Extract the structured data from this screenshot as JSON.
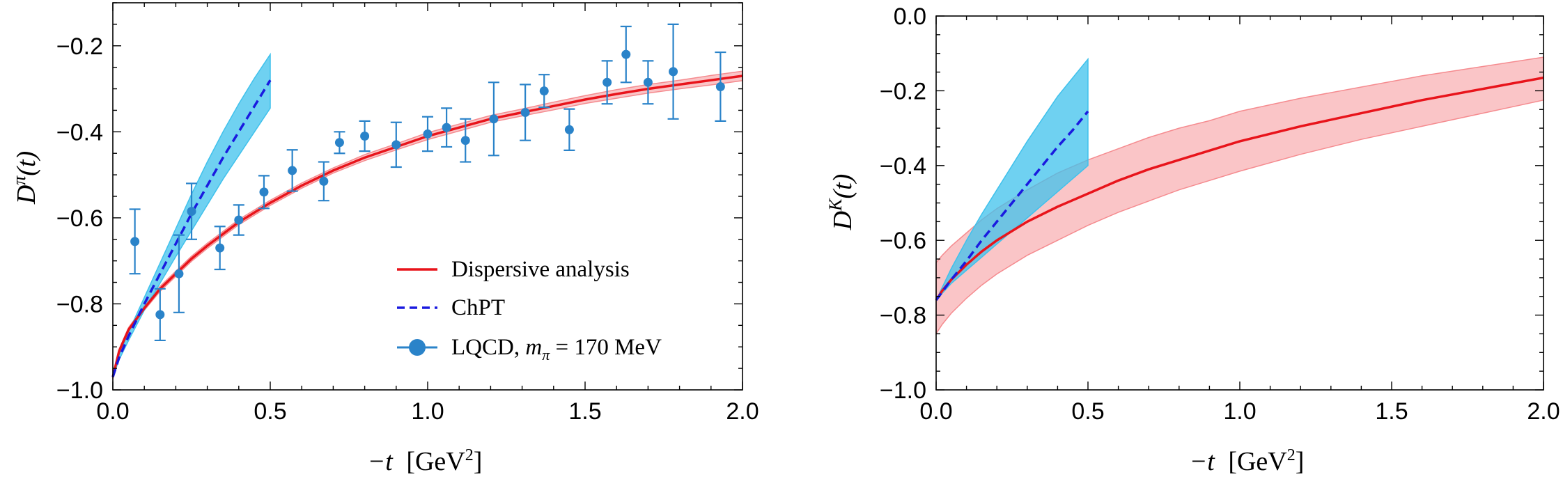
{
  "chart_data": [
    {
      "type": "line",
      "id": "pion",
      "xlabel_main": "−t",
      "xlabel_unit": "[GeV",
      "xlabel_unit_sup": "2",
      "xlabel_unit_close": "]",
      "ylabel_main": "D",
      "ylabel_sup": "π",
      "ylabel_arg": "(t)",
      "xlim": [
        0.0,
        2.0
      ],
      "ylim": [
        -1.0,
        -0.1
      ],
      "xticks": [
        "0.0",
        "0.5",
        "1.0",
        "1.5",
        "2.0"
      ],
      "yticks": [
        "−1.0",
        "−0.8",
        "−0.6",
        "−0.4",
        "−0.2"
      ],
      "grid": false,
      "legend_placement": "bottom-right",
      "legend": [
        {
          "label": "Dispersive analysis",
          "style": "solid",
          "color": "#e8141b"
        },
        {
          "label": "ChPT",
          "style": "dashed",
          "color": "#1a1adf"
        },
        {
          "label": "LQCD, ",
          "label_var": "m",
          "label_sub": "π",
          "label_rest": " = 170 MeV",
          "style": "points",
          "color": "#2a83c9"
        }
      ],
      "series": [
        {
          "name": "Dispersive analysis",
          "color": "#e8141b",
          "band_color": "#f58b8f",
          "x": [
            0.0,
            0.02,
            0.05,
            0.1,
            0.15,
            0.2,
            0.25,
            0.3,
            0.4,
            0.5,
            0.6,
            0.7,
            0.8,
            0.9,
            1.0,
            1.1,
            1.2,
            1.3,
            1.4,
            1.5,
            1.6,
            1.7,
            1.8,
            1.9,
            2.0
          ],
          "y": [
            -0.97,
            -0.91,
            -0.86,
            -0.81,
            -0.765,
            -0.73,
            -0.695,
            -0.665,
            -0.61,
            -0.565,
            -0.525,
            -0.49,
            -0.46,
            -0.435,
            -0.41,
            -0.39,
            -0.37,
            -0.355,
            -0.34,
            -0.325,
            -0.312,
            -0.3,
            -0.29,
            -0.28,
            -0.27
          ],
          "y_lo": [
            -0.975,
            -0.915,
            -0.865,
            -0.815,
            -0.771,
            -0.736,
            -0.701,
            -0.671,
            -0.616,
            -0.571,
            -0.531,
            -0.496,
            -0.467,
            -0.442,
            -0.418,
            -0.398,
            -0.378,
            -0.363,
            -0.349,
            -0.334,
            -0.322,
            -0.31,
            -0.3,
            -0.291,
            -0.281
          ],
          "y_hi": [
            -0.965,
            -0.905,
            -0.855,
            -0.805,
            -0.759,
            -0.724,
            -0.689,
            -0.659,
            -0.604,
            -0.559,
            -0.519,
            -0.484,
            -0.453,
            -0.428,
            -0.402,
            -0.382,
            -0.362,
            -0.347,
            -0.331,
            -0.316,
            -0.302,
            -0.29,
            -0.28,
            -0.269,
            -0.259
          ]
        },
        {
          "name": "ChPT",
          "color": "#1a1adf",
          "band_color": "#3fc1ec",
          "dashed": true,
          "x": [
            0.0,
            0.02,
            0.05,
            0.1,
            0.15,
            0.2,
            0.25,
            0.3,
            0.35,
            0.4,
            0.45,
            0.5
          ],
          "y": [
            -0.97,
            -0.925,
            -0.875,
            -0.8,
            -0.73,
            -0.66,
            -0.59,
            -0.525,
            -0.46,
            -0.4,
            -0.34,
            -0.28
          ],
          "y_lo": [
            -0.97,
            -0.93,
            -0.885,
            -0.815,
            -0.752,
            -0.69,
            -0.63,
            -0.57,
            -0.51,
            -0.455,
            -0.4,
            -0.345
          ],
          "y_hi": [
            -0.97,
            -0.92,
            -0.865,
            -0.785,
            -0.705,
            -0.625,
            -0.545,
            -0.47,
            -0.4,
            -0.335,
            -0.275,
            -0.22
          ]
        },
        {
          "name": "LQCD, m_π = 170 MeV",
          "color": "#2a83c9",
          "points": true,
          "x": [
            0.07,
            0.15,
            0.21,
            0.25,
            0.34,
            0.4,
            0.48,
            0.57,
            0.67,
            0.72,
            0.8,
            0.9,
            1.0,
            1.06,
            1.12,
            1.21,
            1.31,
            1.37,
            1.45,
            1.57,
            1.63,
            1.7,
            1.78,
            1.93
          ],
          "y": [
            -0.655,
            -0.825,
            -0.73,
            -0.585,
            -0.67,
            -0.605,
            -0.54,
            -0.49,
            -0.515,
            -0.425,
            -0.41,
            -0.43,
            -0.405,
            -0.39,
            -0.42,
            -0.37,
            -0.355,
            -0.305,
            -0.395,
            -0.285,
            -0.22,
            -0.285,
            -0.26,
            -0.295
          ],
          "err": [
            0.075,
            0.06,
            0.09,
            0.065,
            0.05,
            0.035,
            0.038,
            0.048,
            0.045,
            0.025,
            0.035,
            0.052,
            0.04,
            0.045,
            0.05,
            0.085,
            0.065,
            0.038,
            0.048,
            0.05,
            0.065,
            0.05,
            0.11,
            0.08
          ]
        }
      ]
    },
    {
      "type": "line",
      "id": "kaon",
      "xlabel_main": "−t",
      "xlabel_unit": "[GeV",
      "xlabel_unit_sup": "2",
      "xlabel_unit_close": "]",
      "ylabel_main": "D",
      "ylabel_sup": "K",
      "ylabel_arg": "(t)",
      "xlim": [
        0.0,
        2.0
      ],
      "ylim": [
        -1.0,
        0.0
      ],
      "xticks": [
        "0.0",
        "0.5",
        "1.0",
        "1.5",
        "2.0"
      ],
      "yticks": [
        "−1.0",
        "−0.8",
        "−0.6",
        "−0.4",
        "−0.2",
        "0.0"
      ],
      "grid": false,
      "series": [
        {
          "name": "Dispersive analysis",
          "color": "#e8141b",
          "band_color": "#f58b8f",
          "x": [
            0.0,
            0.02,
            0.05,
            0.1,
            0.15,
            0.2,
            0.3,
            0.4,
            0.5,
            0.6,
            0.7,
            0.8,
            0.9,
            1.0,
            1.2,
            1.4,
            1.6,
            1.8,
            2.0
          ],
          "y": [
            -0.76,
            -0.735,
            -0.705,
            -0.665,
            -0.63,
            -0.6,
            -0.55,
            -0.51,
            -0.475,
            -0.44,
            -0.41,
            -0.385,
            -0.36,
            -0.335,
            -0.295,
            -0.26,
            -0.225,
            -0.195,
            -0.165
          ],
          "y_lo": [
            -0.85,
            -0.825,
            -0.795,
            -0.755,
            -0.72,
            -0.69,
            -0.64,
            -0.6,
            -0.56,
            -0.525,
            -0.495,
            -0.465,
            -0.44,
            -0.415,
            -0.37,
            -0.33,
            -0.295,
            -0.26,
            -0.225
          ],
          "y_hi": [
            -0.66,
            -0.64,
            -0.615,
            -0.58,
            -0.545,
            -0.515,
            -0.465,
            -0.42,
            -0.385,
            -0.355,
            -0.325,
            -0.3,
            -0.28,
            -0.255,
            -0.22,
            -0.19,
            -0.16,
            -0.135,
            -0.11
          ]
        },
        {
          "name": "ChPT",
          "color": "#1a1adf",
          "band_color": "#3fc1ec",
          "dashed": true,
          "x": [
            0.0,
            0.05,
            0.1,
            0.15,
            0.2,
            0.25,
            0.3,
            0.35,
            0.4,
            0.45,
            0.5
          ],
          "y": [
            -0.76,
            -0.705,
            -0.655,
            -0.6,
            -0.55,
            -0.5,
            -0.45,
            -0.4,
            -0.35,
            -0.305,
            -0.255
          ],
          "y_lo": [
            -0.76,
            -0.715,
            -0.68,
            -0.645,
            -0.61,
            -0.575,
            -0.54,
            -0.505,
            -0.47,
            -0.435,
            -0.4
          ],
          "y_hi": [
            -0.76,
            -0.675,
            -0.6,
            -0.53,
            -0.465,
            -0.4,
            -0.335,
            -0.275,
            -0.215,
            -0.165,
            -0.115
          ]
        }
      ]
    }
  ]
}
